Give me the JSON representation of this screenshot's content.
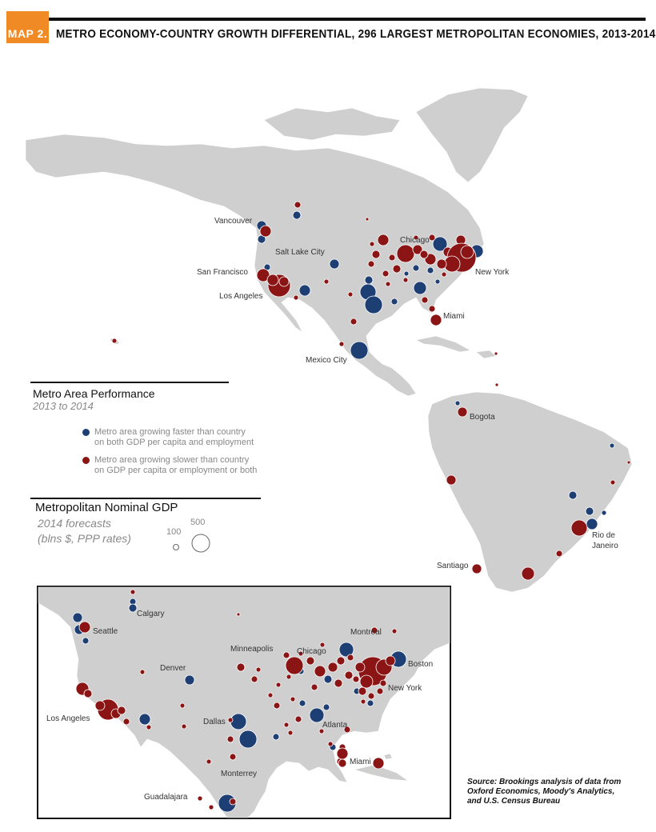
{
  "header": {
    "tag": "MAP 2.",
    "title": "METRO ECONOMY-COUNTRY GROWTH DIFFERENTIAL, 296 LARGEST METROPOLITAN ECONOMIES, 2013-2014"
  },
  "colors": {
    "faster": "#1d3f73",
    "slower": "#8b1414",
    "land": "#cfcfcf",
    "accent": "#f08a24"
  },
  "legend": {
    "performance_title": "Metro Area Performance",
    "performance_sub": "2013 to 2014",
    "faster_label_1": "Metro area growing faster than country",
    "faster_label_2": "on both GDP per capita and employment",
    "slower_label_1": "Metro area growing slower than country",
    "slower_label_2": "on GDP per capita or employment or both",
    "gdp_title": "Metropolitan Nominal GDP",
    "gdp_sub_1": "2014 forecasts",
    "gdp_sub_2": "(blns $, PPP rates)",
    "size_small": "100",
    "size_large": "500"
  },
  "main_labels": {
    "vancouver": "Vancouver",
    "salt_lake_city": "Salt Lake City",
    "chicago": "Chicago",
    "san_francisco": "San Francisco",
    "new_york": "New York",
    "los_angeles": "Los Angeles",
    "miami": "Miami",
    "mexico_city": "Mexico City",
    "bogota": "Bogota",
    "rio": "Rio de",
    "rio2": "Janeiro",
    "santiago": "Santiago"
  },
  "inset_labels": {
    "calgary": "Calgary",
    "seattle": "Seattle",
    "montreal": "Montreal",
    "minneapolis": "Minneapolis",
    "chicago": "Chicago",
    "boston": "Boston",
    "denver": "Denver",
    "new_york": "New York",
    "los_angeles": "Los Angeles",
    "dallas": "Dallas",
    "atlanta": "Atlanta",
    "miami": "Miami",
    "monterrey": "Monterrey",
    "guadalajara": "Guadalajara"
  },
  "source": {
    "line1": "Source: Brookings analysis of data from",
    "line2": "Oxford Economics, Moody's Analytics,",
    "line3": "and U.S. Census Bureau"
  }
}
